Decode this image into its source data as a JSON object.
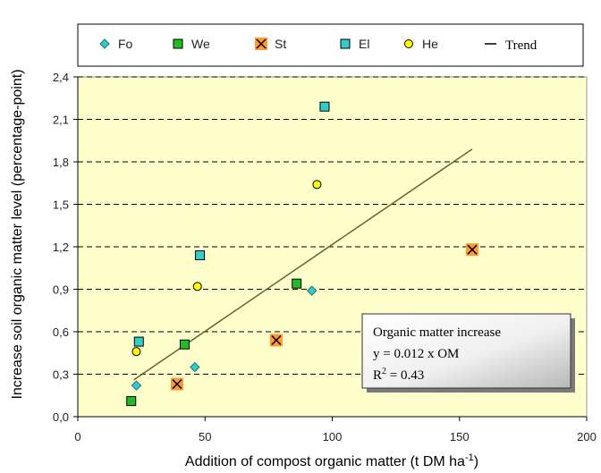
{
  "chart_data": {
    "type": "scatter",
    "title": "",
    "xlabel": "Addition of compost organic matter (t DM ha",
    "xlabel_sup": "-1",
    "xlabel_end": ")",
    "ylabel": "Increase soil organic matter level (percentage-point)",
    "xlim": [
      0,
      200
    ],
    "ylim": [
      0,
      2.4
    ],
    "x_ticks": [
      "0",
      "50",
      "100",
      "150",
      "200"
    ],
    "y_ticks": [
      "0,0",
      "0,3",
      "0,6",
      "0,9",
      "1,2",
      "1,5",
      "1,8",
      "2,1",
      "2,4"
    ],
    "grid": "horizontal dashed",
    "plot_background": "#ffffcc",
    "legend_position": "top",
    "series": [
      {
        "name": "Fo",
        "marker": "diamond",
        "color": "#33cccc",
        "points": [
          [
            23,
            0.22
          ],
          [
            46,
            0.35
          ],
          [
            92,
            0.89
          ]
        ]
      },
      {
        "name": "We",
        "marker": "square",
        "color": "#22bb22",
        "points": [
          [
            21,
            0.11
          ],
          [
            42,
            0.51
          ],
          [
            86,
            0.94
          ]
        ]
      },
      {
        "name": "St",
        "marker": "x-square",
        "color": "#ff9933",
        "points": [
          [
            39,
            0.23
          ],
          [
            78,
            0.54
          ],
          [
            155,
            1.18
          ]
        ]
      },
      {
        "name": "El",
        "marker": "square",
        "color": "#33cccc",
        "points": [
          [
            24,
            0.53
          ],
          [
            48,
            1.14
          ],
          [
            97,
            2.19
          ]
        ]
      },
      {
        "name": "He",
        "marker": "circle",
        "color": "#ffff00",
        "points": [
          [
            23,
            0.46
          ],
          [
            47,
            0.92
          ],
          [
            94,
            1.64
          ]
        ]
      }
    ],
    "trend": {
      "name": "Trend",
      "x_range": [
        22,
        155
      ],
      "y_range": [
        0.26,
        1.89
      ],
      "color": "#556b2f"
    },
    "annotation": {
      "line1": "Organic matter increase",
      "line2": "y = 0.012 x OM",
      "line3_prefix": "R",
      "line3_sup": "2",
      "line3_suffix": " = 0.43"
    }
  }
}
